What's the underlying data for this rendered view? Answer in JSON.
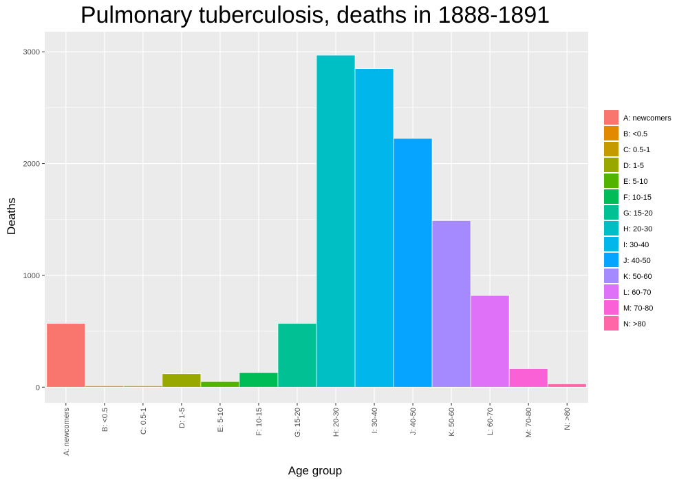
{
  "chart_data": {
    "type": "bar",
    "title": "Pulmonary tuberculosis, deaths in 1888-1891",
    "xlabel": "Age group",
    "ylabel": "Deaths",
    "categories": [
      "A: newcomers",
      "B: <0.5",
      "C: 0.5-1",
      "D: 1-5",
      "E: 5-10",
      "F: 10-15",
      "G: 15-20",
      "H: 20-30",
      "I: 30-40",
      "J: 40-50",
      "K: 50-60",
      "L: 60-70",
      "M: 70-80",
      "N: >80"
    ],
    "values": [
      570,
      12,
      12,
      120,
      50,
      130,
      570,
      2970,
      2850,
      2225,
      1490,
      820,
      165,
      30
    ],
    "colors": [
      "#F8766D",
      "#E38900",
      "#C49A00",
      "#99A800",
      "#53B400",
      "#00BC56",
      "#00C094",
      "#00BFC4",
      "#00B6EB",
      "#06A4FF",
      "#A58AFF",
      "#DF70F8",
      "#FB61D7",
      "#FF66A8"
    ],
    "ylim": [
      -140,
      3180
    ],
    "yticks": [
      0,
      1000,
      2000,
      3000
    ],
    "grid": true,
    "legend": {
      "position": "right",
      "entries": [
        "A: newcomers",
        "B: <0.5",
        "C: 0.5-1",
        "D: 1-5",
        "E: 5-10",
        "F: 10-15",
        "G: 15-20",
        "H: 20-30",
        "I: 30-40",
        "J: 40-50",
        "K: 50-60",
        "L: 60-70",
        "M: 70-80",
        "N: >80"
      ]
    }
  }
}
